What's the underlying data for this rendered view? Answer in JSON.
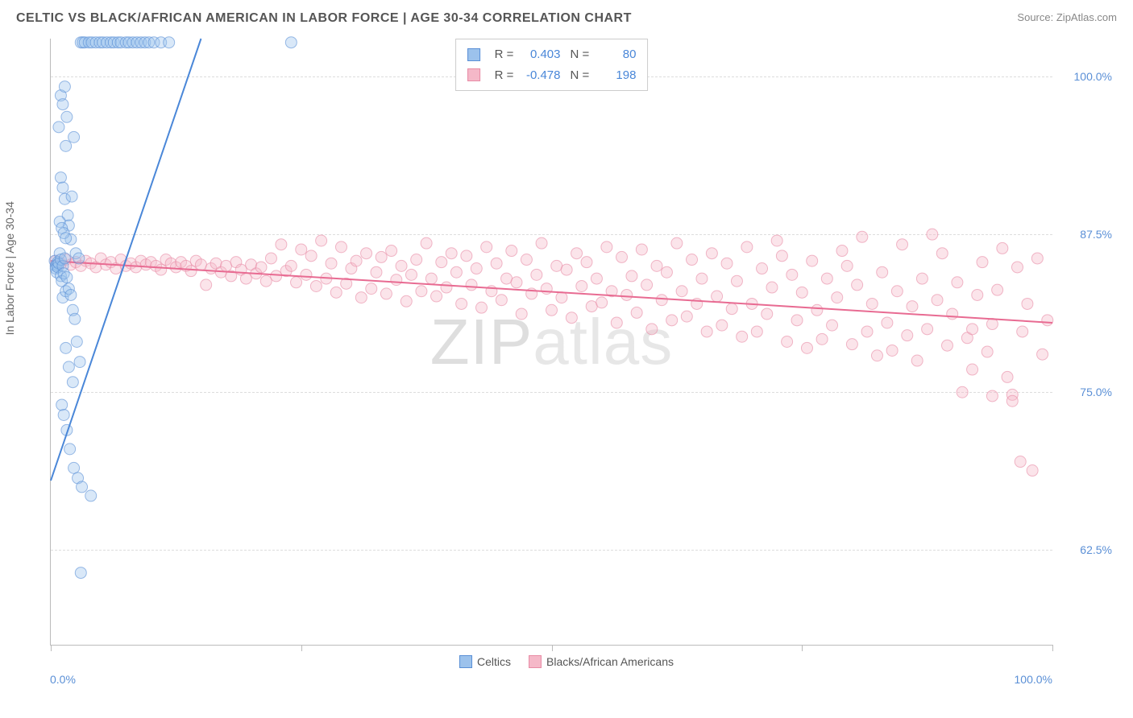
{
  "title": "CELTIC VS BLACK/AFRICAN AMERICAN IN LABOR FORCE | AGE 30-34 CORRELATION CHART",
  "source_label": "Source:",
  "source_name": "ZipAtlas.com",
  "ylabel": "In Labor Force | Age 30-34",
  "watermark": "ZIPatlas",
  "chart": {
    "type": "scatter",
    "xlim": [
      0,
      100
    ],
    "ylim": [
      55,
      103
    ],
    "xtick_positions": [
      0,
      25,
      50,
      75,
      100
    ],
    "ytick_positions": [
      62.5,
      75.0,
      87.5,
      100.0
    ],
    "ytick_labels": [
      "62.5%",
      "75.0%",
      "87.5%",
      "100.0%"
    ],
    "xlab_left": "0.0%",
    "xlab_right": "100.0%",
    "grid_color": "#dddddd",
    "axis_color": "#bbbbbb",
    "background": "#ffffff",
    "marker_radius": 7,
    "marker_opacity": 0.38,
    "line_width": 2
  },
  "series": [
    {
      "key": "celtics",
      "label": "Celtics",
      "fill": "#9cc2ec",
      "stroke": "#5a8fd6",
      "line_color": "#4a87d8",
      "R": "0.403",
      "N": "80",
      "trend": {
        "x1": 0,
        "y1": 68,
        "x2": 15,
        "y2": 103
      },
      "points": [
        [
          0.4,
          85.4
        ],
        [
          0.5,
          85.0
        ],
        [
          0.5,
          84.8
        ],
        [
          0.6,
          85.1
        ],
        [
          0.6,
          84.5
        ],
        [
          0.7,
          85.3
        ],
        [
          0.7,
          84.9
        ],
        [
          0.8,
          85.2
        ],
        [
          0.9,
          86.0
        ],
        [
          1.0,
          85.5
        ],
        [
          1.0,
          84.2
        ],
        [
          1.1,
          83.8
        ],
        [
          1.2,
          85.0
        ],
        [
          1.3,
          84.4
        ],
        [
          1.4,
          85.6
        ],
        [
          1.2,
          82.5
        ],
        [
          1.5,
          83.0
        ],
        [
          1.6,
          84.1
        ],
        [
          1.8,
          83.2
        ],
        [
          2.0,
          82.7
        ],
        [
          2.2,
          81.5
        ],
        [
          2.4,
          80.8
        ],
        [
          2.6,
          79.0
        ],
        [
          2.9,
          77.4
        ],
        [
          1.0,
          92.0
        ],
        [
          1.2,
          91.2
        ],
        [
          1.4,
          90.3
        ],
        [
          1.5,
          94.5
        ],
        [
          1.7,
          89.0
        ],
        [
          1.8,
          88.2
        ],
        [
          2.0,
          87.1
        ],
        [
          2.1,
          90.5
        ],
        [
          2.3,
          95.2
        ],
        [
          2.5,
          86.0
        ],
        [
          2.8,
          85.6
        ],
        [
          3.0,
          102.7
        ],
        [
          3.2,
          102.7
        ],
        [
          3.4,
          102.7
        ],
        [
          3.8,
          102.7
        ],
        [
          4.1,
          102.7
        ],
        [
          4.5,
          102.7
        ],
        [
          4.9,
          102.7
        ],
        [
          5.2,
          102.7
        ],
        [
          5.6,
          102.7
        ],
        [
          6.0,
          102.7
        ],
        [
          6.3,
          102.7
        ],
        [
          6.7,
          102.7
        ],
        [
          7.0,
          102.7
        ],
        [
          7.5,
          102.7
        ],
        [
          7.8,
          102.7
        ],
        [
          8.2,
          102.7
        ],
        [
          8.6,
          102.7
        ],
        [
          9.0,
          102.7
        ],
        [
          9.4,
          102.7
        ],
        [
          9.8,
          102.7
        ],
        [
          10.3,
          102.7
        ],
        [
          11.0,
          102.7
        ],
        [
          11.8,
          102.7
        ],
        [
          24.0,
          102.7
        ],
        [
          1.0,
          98.5
        ],
        [
          1.2,
          97.8
        ],
        [
          1.4,
          99.2
        ],
        [
          0.8,
          96.0
        ],
        [
          1.6,
          96.8
        ],
        [
          1.1,
          74.0
        ],
        [
          1.3,
          73.2
        ],
        [
          1.6,
          72.0
        ],
        [
          1.9,
          70.5
        ],
        [
          2.3,
          69.0
        ],
        [
          2.7,
          68.2
        ],
        [
          1.5,
          78.5
        ],
        [
          1.8,
          77.0
        ],
        [
          2.2,
          75.8
        ],
        [
          3.1,
          67.5
        ],
        [
          4.0,
          66.8
        ],
        [
          3.0,
          60.7
        ],
        [
          0.9,
          88.5
        ],
        [
          1.1,
          88.0
        ],
        [
          1.3,
          87.6
        ],
        [
          1.5,
          87.2
        ]
      ]
    },
    {
      "key": "black",
      "label": "Blacks/African Americans",
      "fill": "#f5b8c8",
      "stroke": "#e88ba5",
      "line_color": "#e86b92",
      "R": "-0.478",
      "N": "198",
      "trend": {
        "x1": 0,
        "y1": 85.4,
        "x2": 100,
        "y2": 80.5
      },
      "points": [
        [
          0.5,
          85.4
        ],
        [
          1.0,
          85.2
        ],
        [
          1.5,
          85.5
        ],
        [
          2.0,
          85.1
        ],
        [
          2.5,
          85.3
        ],
        [
          3.0,
          85.0
        ],
        [
          3.5,
          85.4
        ],
        [
          4.0,
          85.2
        ],
        [
          4.5,
          84.9
        ],
        [
          5.0,
          85.6
        ],
        [
          5.5,
          85.1
        ],
        [
          6.0,
          85.3
        ],
        [
          6.5,
          84.8
        ],
        [
          7.0,
          85.5
        ],
        [
          7.5,
          85.0
        ],
        [
          8.0,
          85.2
        ],
        [
          8.5,
          84.9
        ],
        [
          9.0,
          85.4
        ],
        [
          9.5,
          85.1
        ],
        [
          10.0,
          85.3
        ],
        [
          10.5,
          85.0
        ],
        [
          11.0,
          84.7
        ],
        [
          11.5,
          85.5
        ],
        [
          12.0,
          85.2
        ],
        [
          12.5,
          84.9
        ],
        [
          13.0,
          85.3
        ],
        [
          13.5,
          85.0
        ],
        [
          14.0,
          84.6
        ],
        [
          14.5,
          85.4
        ],
        [
          15.0,
          85.1
        ],
        [
          15.5,
          83.5
        ],
        [
          16.0,
          84.8
        ],
        [
          16.5,
          85.2
        ],
        [
          17.0,
          84.5
        ],
        [
          17.5,
          85.0
        ],
        [
          18.0,
          84.2
        ],
        [
          18.5,
          85.3
        ],
        [
          19.0,
          84.7
        ],
        [
          19.5,
          84.0
        ],
        [
          20.0,
          85.1
        ],
        [
          20.5,
          84.4
        ],
        [
          21.0,
          84.9
        ],
        [
          21.5,
          83.8
        ],
        [
          22.0,
          85.6
        ],
        [
          22.5,
          84.2
        ],
        [
          23.0,
          86.7
        ],
        [
          23.5,
          84.6
        ],
        [
          24.0,
          85.0
        ],
        [
          24.5,
          83.7
        ],
        [
          25.0,
          86.3
        ],
        [
          25.5,
          84.3
        ],
        [
          26.0,
          85.8
        ],
        [
          26.5,
          83.4
        ],
        [
          27.0,
          87.0
        ],
        [
          27.5,
          84.0
        ],
        [
          28.0,
          85.2
        ],
        [
          28.5,
          82.9
        ],
        [
          29.0,
          86.5
        ],
        [
          29.5,
          83.6
        ],
        [
          30.0,
          84.8
        ],
        [
          30.5,
          85.4
        ],
        [
          31.0,
          82.5
        ],
        [
          31.5,
          86.0
        ],
        [
          32.0,
          83.2
        ],
        [
          32.5,
          84.5
        ],
        [
          33.0,
          85.7
        ],
        [
          33.5,
          82.8
        ],
        [
          34.0,
          86.2
        ],
        [
          34.5,
          83.9
        ],
        [
          35.0,
          85.0
        ],
        [
          35.5,
          82.2
        ],
        [
          36.0,
          84.3
        ],
        [
          36.5,
          85.5
        ],
        [
          37.0,
          83.0
        ],
        [
          37.5,
          86.8
        ],
        [
          38.0,
          84.0
        ],
        [
          38.5,
          82.6
        ],
        [
          39.0,
          85.3
        ],
        [
          39.5,
          83.3
        ],
        [
          40.0,
          86.0
        ],
        [
          40.5,
          84.5
        ],
        [
          41.0,
          82.0
        ],
        [
          41.5,
          85.8
        ],
        [
          42.0,
          83.5
        ],
        [
          42.5,
          84.8
        ],
        [
          43.0,
          81.7
        ],
        [
          43.5,
          86.5
        ],
        [
          44.0,
          83.0
        ],
        [
          44.5,
          85.2
        ],
        [
          45.0,
          82.3
        ],
        [
          45.5,
          84.0
        ],
        [
          46.0,
          86.2
        ],
        [
          46.5,
          83.7
        ],
        [
          47.0,
          81.2
        ],
        [
          47.5,
          85.5
        ],
        [
          48.0,
          82.8
        ],
        [
          48.5,
          84.3
        ],
        [
          49.0,
          86.8
        ],
        [
          49.5,
          83.2
        ],
        [
          50.0,
          81.5
        ],
        [
          50.5,
          85.0
        ],
        [
          51.0,
          82.5
        ],
        [
          51.5,
          84.7
        ],
        [
          52.0,
          80.9
        ],
        [
          52.5,
          86.0
        ],
        [
          53.0,
          83.4
        ],
        [
          53.5,
          85.3
        ],
        [
          54.0,
          81.8
        ],
        [
          54.5,
          84.0
        ],
        [
          55.0,
          82.1
        ],
        [
          55.5,
          86.5
        ],
        [
          56.0,
          83.0
        ],
        [
          56.5,
          80.5
        ],
        [
          57.0,
          85.7
        ],
        [
          57.5,
          82.7
        ],
        [
          58.0,
          84.2
        ],
        [
          58.5,
          81.3
        ],
        [
          59.0,
          86.3
        ],
        [
          59.5,
          83.5
        ],
        [
          60.0,
          80.0
        ],
        [
          60.5,
          85.0
        ],
        [
          61.0,
          82.3
        ],
        [
          61.5,
          84.5
        ],
        [
          62.0,
          80.7
        ],
        [
          62.5,
          86.8
        ],
        [
          63.0,
          83.0
        ],
        [
          63.5,
          81.0
        ],
        [
          64.0,
          85.5
        ],
        [
          64.5,
          82.0
        ],
        [
          65.0,
          84.0
        ],
        [
          65.5,
          79.8
        ],
        [
          66.0,
          86.0
        ],
        [
          66.5,
          82.6
        ],
        [
          67.0,
          80.3
        ],
        [
          67.5,
          85.2
        ],
        [
          68.0,
          81.6
        ],
        [
          68.5,
          83.8
        ],
        [
          69.0,
          79.4
        ],
        [
          69.5,
          86.5
        ],
        [
          70.0,
          82.0
        ],
        [
          70.5,
          79.8
        ],
        [
          71.0,
          84.8
        ],
        [
          71.5,
          81.2
        ],
        [
          72.0,
          83.3
        ],
        [
          72.5,
          87.0
        ],
        [
          73.0,
          85.8
        ],
        [
          73.5,
          79.0
        ],
        [
          74.0,
          84.3
        ],
        [
          74.5,
          80.7
        ],
        [
          75.0,
          82.9
        ],
        [
          75.5,
          78.5
        ],
        [
          76.0,
          85.4
        ],
        [
          76.5,
          81.5
        ],
        [
          77.0,
          79.2
        ],
        [
          77.5,
          84.0
        ],
        [
          78.0,
          80.3
        ],
        [
          78.5,
          82.5
        ],
        [
          79.0,
          86.2
        ],
        [
          79.5,
          85.0
        ],
        [
          80.0,
          78.8
        ],
        [
          80.5,
          83.5
        ],
        [
          81.0,
          87.3
        ],
        [
          81.5,
          79.8
        ],
        [
          82.0,
          82.0
        ],
        [
          82.5,
          77.9
        ],
        [
          83.0,
          84.5
        ],
        [
          83.5,
          80.5
        ],
        [
          84.0,
          78.3
        ],
        [
          84.5,
          83.0
        ],
        [
          85.0,
          86.7
        ],
        [
          85.5,
          79.5
        ],
        [
          86.0,
          81.8
        ],
        [
          86.5,
          77.5
        ],
        [
          87.0,
          84.0
        ],
        [
          87.5,
          80.0
        ],
        [
          88.0,
          87.5
        ],
        [
          88.5,
          82.3
        ],
        [
          89.0,
          86.0
        ],
        [
          89.5,
          78.7
        ],
        [
          90.0,
          81.2
        ],
        [
          90.5,
          83.7
        ],
        [
          91.0,
          75.0
        ],
        [
          91.5,
          79.3
        ],
        [
          92.0,
          76.8
        ],
        [
          92.5,
          82.7
        ],
        [
          93.0,
          85.3
        ],
        [
          93.5,
          78.2
        ],
        [
          94.0,
          80.4
        ],
        [
          94.5,
          83.1
        ],
        [
          95.0,
          86.4
        ],
        [
          95.5,
          76.2
        ],
        [
          96.0,
          74.8
        ],
        [
          96.5,
          84.9
        ],
        [
          97.0,
          79.8
        ],
        [
          97.5,
          82.0
        ],
        [
          98.0,
          68.8
        ],
        [
          98.5,
          85.6
        ],
        [
          99.0,
          78.0
        ],
        [
          99.5,
          80.7
        ],
        [
          94.0,
          74.7
        ],
        [
          96.0,
          74.3
        ],
        [
          96.8,
          69.5
        ],
        [
          92.0,
          80.0
        ]
      ]
    }
  ],
  "legend_bottom": [
    {
      "swatch_fill": "#9cc2ec",
      "swatch_stroke": "#5a8fd6",
      "label": "Celtics"
    },
    {
      "swatch_fill": "#f5b8c8",
      "swatch_stroke": "#e88ba5",
      "label": "Blacks/African Americans"
    }
  ]
}
